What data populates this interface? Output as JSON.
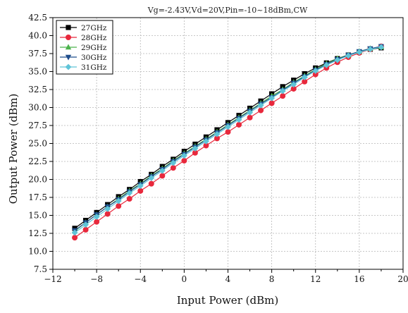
{
  "chart_data": {
    "type": "line",
    "title": "Vg=-2.43V,Vd=20V,Pin=-10~18dBm,CW",
    "xlabel": "Input Power (dBm)",
    "ylabel": "Output Power (dBm)",
    "xlim": [
      -12,
      20
    ],
    "ylim": [
      7.5,
      42.5
    ],
    "xticks": [
      -12,
      -8,
      -4,
      0,
      4,
      8,
      12,
      16,
      20
    ],
    "xtick_labels": [
      "−12",
      "−8",
      "−4",
      "0",
      "4",
      "8",
      "12",
      "16",
      "20"
    ],
    "yticks": [
      7.5,
      10.0,
      12.5,
      15.0,
      17.5,
      20.0,
      22.5,
      25.0,
      27.5,
      30.0,
      32.5,
      35.0,
      37.5,
      40.0,
      42.5
    ],
    "ytick_labels": [
      "7.5",
      "10.0",
      "12.5",
      "15.0",
      "17.5",
      "20.0",
      "22.5",
      "25.0",
      "27.5",
      "30.0",
      "32.5",
      "35.0",
      "37.5",
      "40.0",
      "42.5"
    ],
    "grid": true,
    "legend_position": "top-left",
    "x": [
      -10,
      -9,
      -8,
      -7,
      -6,
      -5,
      -4,
      -3,
      -2,
      -1,
      0,
      1,
      2,
      3,
      4,
      5,
      6,
      7,
      8,
      9,
      10,
      11,
      12,
      13,
      14,
      15,
      16,
      17,
      18
    ],
    "series": [
      {
        "name": "27GHz",
        "color": "#000000",
        "marker": "square",
        "values": [
          13.2,
          14.3,
          15.4,
          16.5,
          17.6,
          18.6,
          19.7,
          20.7,
          21.8,
          22.8,
          23.9,
          24.9,
          25.9,
          26.9,
          27.9,
          28.9,
          29.9,
          30.9,
          31.9,
          32.9,
          33.8,
          34.7,
          35.5,
          36.2,
          36.8,
          37.3,
          37.7,
          38.1,
          38.3
        ]
      },
      {
        "name": "28GHz",
        "color": "#e8283c",
        "marker": "circle",
        "values": [
          11.9,
          13.0,
          14.1,
          15.2,
          16.3,
          17.3,
          18.4,
          19.4,
          20.5,
          21.6,
          22.6,
          23.7,
          24.7,
          25.7,
          26.6,
          27.6,
          28.6,
          29.6,
          30.6,
          31.6,
          32.6,
          33.6,
          34.6,
          35.5,
          36.3,
          37.0,
          37.6,
          38.1,
          38.5
        ]
      },
      {
        "name": "29GHz",
        "color": "#4cb34c",
        "marker": "triangle-up",
        "values": [
          12.8,
          14.0,
          15.1,
          16.2,
          17.3,
          18.4,
          19.4,
          20.5,
          21.5,
          22.6,
          23.6,
          24.6,
          25.6,
          26.6,
          27.6,
          28.6,
          29.6,
          30.6,
          31.6,
          32.5,
          33.5,
          34.4,
          35.3,
          36.1,
          36.8,
          37.3,
          37.8,
          38.2,
          38.4
        ]
      },
      {
        "name": "30GHz",
        "color": "#1f4e8c",
        "marker": "triangle-down",
        "values": [
          12.9,
          14.0,
          15.1,
          16.2,
          17.2,
          18.3,
          19.3,
          20.4,
          21.4,
          22.5,
          23.5,
          24.5,
          25.5,
          26.5,
          27.5,
          28.5,
          29.5,
          30.5,
          31.4,
          32.4,
          33.4,
          34.3,
          35.2,
          36.0,
          36.7,
          37.3,
          37.8,
          38.2,
          38.5
        ]
      },
      {
        "name": "31GHz",
        "color": "#5fc4d8",
        "marker": "diamond",
        "values": [
          12.6,
          13.7,
          14.8,
          15.9,
          17.0,
          18.1,
          19.1,
          20.2,
          21.2,
          22.3,
          23.3,
          24.3,
          25.3,
          26.3,
          27.3,
          28.3,
          29.3,
          30.3,
          31.3,
          32.3,
          33.2,
          34.2,
          35.1,
          35.9,
          36.6,
          37.2,
          37.7,
          38.1,
          38.4
        ]
      }
    ]
  }
}
